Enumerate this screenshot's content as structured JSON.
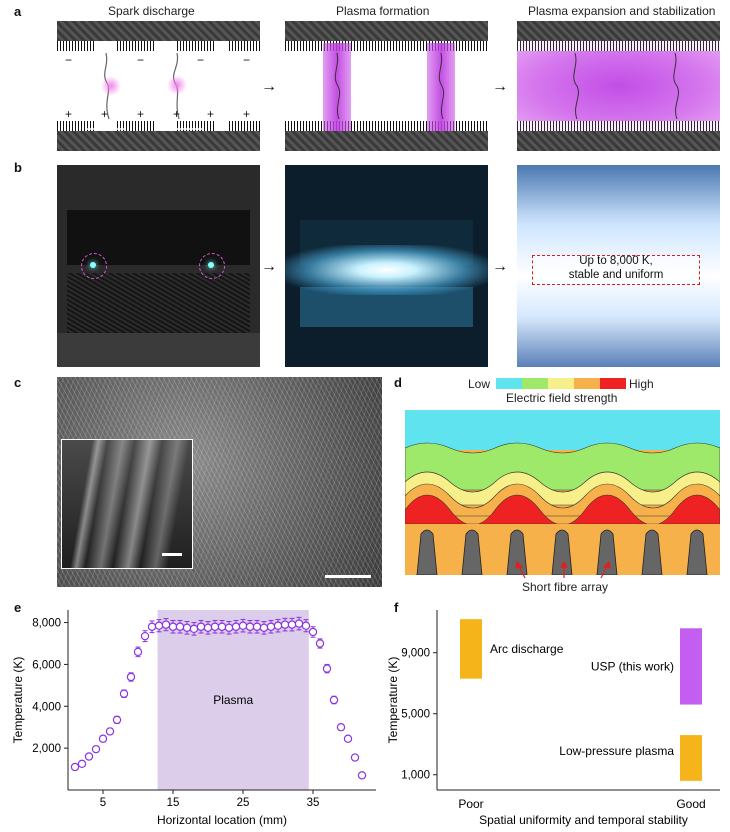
{
  "panel_a": {
    "label": "a",
    "titles": [
      "Spark discharge",
      "Plasma formation",
      "Plasma expansion and stabilization"
    ],
    "minus_sign": "−",
    "plus_sign": "+"
  },
  "panel_b": {
    "label": "b",
    "annotation": "Up to 8,000 K,\nstable and uniform"
  },
  "panel_c": {
    "label": "c"
  },
  "panel_d": {
    "label": "d",
    "legend_low": "Low",
    "legend_high": "High",
    "legend_title": "Electric field strength",
    "legend_colors": [
      "#5fe3ee",
      "#9ee86a",
      "#f7f08a",
      "#f6b14a",
      "#ee2222"
    ],
    "fibre_label": "Short fibre array"
  },
  "chart_data": [
    {
      "panel": "e",
      "type": "scatter",
      "xlabel": "Horizontal location (mm)",
      "ylabel": "Temperature (K)",
      "xlim": [
        0,
        44
      ],
      "ylim": [
        0,
        8600
      ],
      "xticks": [
        5,
        15,
        25,
        35
      ],
      "yticks": [
        2000,
        4000,
        6000,
        8000
      ],
      "xtick_labels": [
        "5",
        "15",
        "25",
        "35"
      ],
      "ytick_labels": [
        "2,000",
        "4,000",
        "6,000",
        "8,000"
      ],
      "region": {
        "label": "Plasma",
        "x": [
          12.8,
          34.4
        ],
        "color": "#dccdea"
      },
      "marker_color": "#8a35e0",
      "x": [
        1,
        2,
        3,
        4,
        5,
        6,
        7,
        8,
        9,
        10,
        11,
        12,
        13,
        14,
        15,
        16,
        17,
        18,
        19,
        20,
        21,
        22,
        23,
        24,
        25,
        26,
        27,
        28,
        29,
        30,
        31,
        32,
        33,
        34,
        35,
        36,
        37,
        38,
        39,
        40,
        41,
        42
      ],
      "y": [
        1100,
        1250,
        1600,
        1950,
        2450,
        2800,
        3350,
        4600,
        5400,
        6600,
        7350,
        7800,
        7850,
        7900,
        7800,
        7800,
        7750,
        7700,
        7800,
        7750,
        7800,
        7800,
        7750,
        7800,
        7850,
        7800,
        7800,
        7750,
        7800,
        7850,
        7900,
        7900,
        7950,
        7850,
        7550,
        7000,
        5800,
        4300,
        3000,
        2450,
        1550,
        700
      ],
      "yerr": [
        120,
        120,
        130,
        140,
        150,
        150,
        170,
        180,
        200,
        230,
        260,
        280,
        290,
        290,
        300,
        300,
        300,
        300,
        300,
        300,
        300,
        300,
        300,
        300,
        300,
        300,
        300,
        300,
        300,
        300,
        300,
        300,
        300,
        290,
        250,
        220,
        200,
        180,
        150,
        130,
        110,
        80
      ]
    },
    {
      "panel": "f",
      "type": "bar",
      "xlabel": "Spatial uniformity and temporal stability",
      "ylabel": "Temperature (K)",
      "xtick_labels": [
        "Poor",
        "Good"
      ],
      "ylim": [
        0,
        11800
      ],
      "yticks": [
        1000,
        5000,
        9000
      ],
      "ytick_labels": [
        "1,000",
        "5,000",
        "9,000"
      ],
      "bars": [
        {
          "name": "Arc discharge",
          "x": "Poor",
          "low": 7300,
          "high": 11200,
          "color": "#f5b41a"
        },
        {
          "name": "USP (this work)",
          "x": "Good",
          "low": 5600,
          "high": 10600,
          "color": "#c35ef0"
        },
        {
          "name": "Low-pressure plasma",
          "x": "Good",
          "low": 600,
          "high": 3600,
          "color": "#f5b41a"
        }
      ]
    }
  ]
}
